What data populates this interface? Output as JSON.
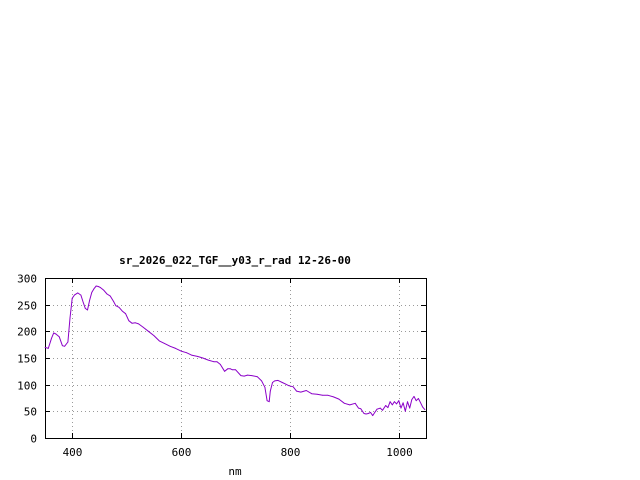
{
  "chart_data": {
    "type": "line",
    "title": "sr_2026_022_TGF__y03_r_rad 12-26-00",
    "xlabel": "nm",
    "ylabel": "",
    "xlim": [
      350,
      1050
    ],
    "ylim": [
      0,
      300
    ],
    "xticks": [
      400,
      600,
      800,
      1000
    ],
    "yticks": [
      0,
      50,
      100,
      150,
      200,
      250,
      300
    ],
    "grid": true,
    "legend": "none",
    "series": [
      {
        "color": "#8b00c8",
        "x": [
          350,
          356,
          362,
          366,
          370,
          376,
          382,
          386,
          392,
          396,
          400,
          404,
          410,
          416,
          420,
          424,
          428,
          432,
          436,
          440,
          444,
          448,
          452,
          458,
          464,
          470,
          476,
          480,
          486,
          492,
          498,
          504,
          510,
          516,
          522,
          530,
          540,
          550,
          560,
          570,
          580,
          590,
          600,
          610,
          620,
          630,
          640,
          650,
          660,
          666,
          672,
          680,
          686,
          690,
          694,
          700,
          710,
          716,
          722,
          730,
          740,
          748,
          754,
          758,
          762,
          764,
          768,
          772,
          778,
          786,
          792,
          798,
          806,
          812,
          820,
          830,
          840,
          850,
          860,
          870,
          880,
          890,
          900,
          910,
          920,
          926,
          930,
          936,
          940,
          944,
          948,
          952,
          956,
          960,
          966,
          970,
          976,
          980,
          984,
          988,
          992,
          996,
          1000,
          1004,
          1008,
          1012,
          1016,
          1020,
          1024,
          1028,
          1032,
          1036,
          1040,
          1044,
          1048
        ],
        "y": [
          170,
          168,
          187,
          197,
          195,
          190,
          173,
          172,
          180,
          225,
          262,
          268,
          272,
          268,
          255,
          243,
          240,
          258,
          273,
          280,
          285,
          284,
          282,
          277,
          270,
          266,
          256,
          248,
          245,
          238,
          233,
          220,
          215,
          216,
          214,
          208,
          200,
          192,
          182,
          177,
          172,
          168,
          163,
          160,
          155,
          153,
          150,
          146,
          143,
          143,
          138,
          125,
          130,
          130,
          128,
          128,
          117,
          116,
          118,
          117,
          115,
          107,
          95,
          70,
          68,
          88,
          104,
          107,
          108,
          104,
          101,
          98,
          96,
          88,
          86,
          89,
          83,
          82,
          80,
          80,
          77,
          73,
          65,
          62,
          65,
          56,
          55,
          46,
          45,
          46,
          48,
          42,
          48,
          54,
          56,
          52,
          61,
          57,
          68,
          62,
          68,
          64,
          70,
          56,
          66,
          50,
          68,
          56,
          72,
          78,
          70,
          74,
          66,
          58,
          53
        ]
      }
    ]
  }
}
